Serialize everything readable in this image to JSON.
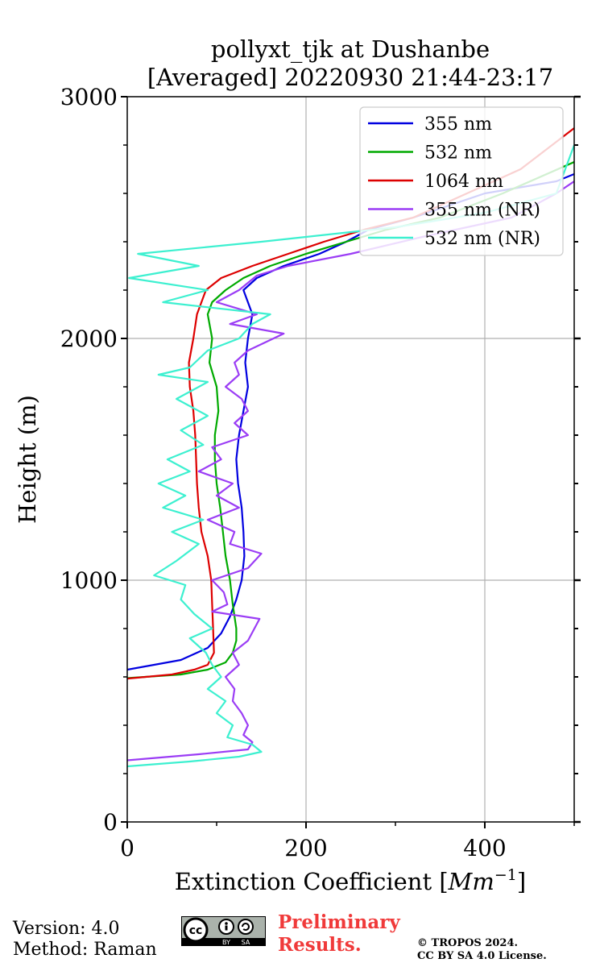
{
  "chart_data": {
    "type": "line",
    "title": "pollyxt_tjk at Dushanbe",
    "subtitle": "[Averaged] 20220930 21:44-23:17",
    "xlabel_text": "Extinction Coefficient [",
    "xlabel_unit": "Mm",
    "xlabel_exp": "−1",
    "xlabel_close": "]",
    "ylabel": "Height (m)",
    "xlim": [
      0,
      500
    ],
    "ylim": [
      0,
      3000
    ],
    "xticks": [
      0,
      200,
      400
    ],
    "xtick_labels": [
      "0",
      "200",
      "400"
    ],
    "yticks": [
      0,
      1000,
      2000,
      3000
    ],
    "ytick_labels": [
      "0",
      "1000",
      "2000",
      "3000"
    ],
    "grid": true,
    "legend_position": "top-right",
    "series": [
      {
        "name": "355 nm",
        "color": "#0000e0",
        "points": [
          [
            0,
            630
          ],
          [
            60,
            670
          ],
          [
            90,
            720
          ],
          [
            105,
            780
          ],
          [
            115,
            850
          ],
          [
            122,
            920
          ],
          [
            128,
            1000
          ],
          [
            131,
            1100
          ],
          [
            130,
            1200
          ],
          [
            128,
            1300
          ],
          [
            124,
            1400
          ],
          [
            122,
            1500
          ],
          [
            125,
            1600
          ],
          [
            130,
            1700
          ],
          [
            135,
            1800
          ],
          [
            132,
            1900
          ],
          [
            135,
            2000
          ],
          [
            140,
            2100
          ],
          [
            130,
            2200
          ],
          [
            145,
            2250
          ],
          [
            175,
            2300
          ],
          [
            215,
            2350
          ],
          [
            245,
            2400
          ],
          [
            270,
            2450
          ],
          [
            320,
            2500
          ],
          [
            400,
            2600
          ],
          [
            480,
            2650
          ],
          [
            500,
            2680
          ]
        ]
      },
      {
        "name": "532 nm",
        "color": "#00aa00",
        "points": [
          [
            0,
            595
          ],
          [
            60,
            610
          ],
          [
            90,
            630
          ],
          [
            110,
            660
          ],
          [
            118,
            700
          ],
          [
            122,
            750
          ],
          [
            122,
            800
          ],
          [
            118,
            900
          ],
          [
            115,
            1000
          ],
          [
            110,
            1100
          ],
          [
            107,
            1200
          ],
          [
            104,
            1300
          ],
          [
            100,
            1400
          ],
          [
            98,
            1500
          ],
          [
            98,
            1600
          ],
          [
            102,
            1700
          ],
          [
            100,
            1800
          ],
          [
            92,
            1900
          ],
          [
            95,
            2000
          ],
          [
            90,
            2100
          ],
          [
            95,
            2150
          ],
          [
            110,
            2200
          ],
          [
            130,
            2250
          ],
          [
            160,
            2300
          ],
          [
            200,
            2350
          ],
          [
            245,
            2400
          ],
          [
            290,
            2450
          ],
          [
            350,
            2500
          ],
          [
            420,
            2600
          ],
          [
            500,
            2730
          ]
        ]
      },
      {
        "name": "1064 nm",
        "color": "#dd0000",
        "points": [
          [
            0,
            593
          ],
          [
            50,
            610
          ],
          [
            75,
            630
          ],
          [
            90,
            650
          ],
          [
            97,
            700
          ],
          [
            96,
            800
          ],
          [
            95,
            900
          ],
          [
            94,
            1000
          ],
          [
            90,
            1100
          ],
          [
            83,
            1200
          ],
          [
            80,
            1300
          ],
          [
            78,
            1400
          ],
          [
            77,
            1500
          ],
          [
            76,
            1600
          ],
          [
            74,
            1700
          ],
          [
            70,
            1800
          ],
          [
            69,
            1900
          ],
          [
            74,
            2000
          ],
          [
            78,
            2100
          ],
          [
            88,
            2200
          ],
          [
            105,
            2250
          ],
          [
            140,
            2300
          ],
          [
            180,
            2350
          ],
          [
            220,
            2400
          ],
          [
            265,
            2450
          ],
          [
            320,
            2500
          ],
          [
            380,
            2600
          ],
          [
            440,
            2700
          ],
          [
            500,
            2870
          ]
        ]
      },
      {
        "name": "355 nm (NR)",
        "color": "#9b3df5",
        "points": [
          [
            0,
            255
          ],
          [
            80,
            280
          ],
          [
            135,
            300
          ],
          [
            140,
            330
          ],
          [
            130,
            360
          ],
          [
            135,
            400
          ],
          [
            128,
            450
          ],
          [
            118,
            500
          ],
          [
            120,
            550
          ],
          [
            110,
            600
          ],
          [
            125,
            650
          ],
          [
            118,
            700
          ],
          [
            135,
            750
          ],
          [
            148,
            840
          ],
          [
            95,
            870
          ],
          [
            112,
            900
          ],
          [
            108,
            950
          ],
          [
            95,
            1000
          ],
          [
            135,
            1050
          ],
          [
            150,
            1110
          ],
          [
            115,
            1150
          ],
          [
            120,
            1200
          ],
          [
            90,
            1250
          ],
          [
            125,
            1300
          ],
          [
            100,
            1350
          ],
          [
            118,
            1400
          ],
          [
            80,
            1450
          ],
          [
            105,
            1500
          ],
          [
            95,
            1550
          ],
          [
            135,
            1600
          ],
          [
            120,
            1650
          ],
          [
            135,
            1700
          ],
          [
            128,
            1750
          ],
          [
            110,
            1800
          ],
          [
            125,
            1850
          ],
          [
            120,
            1900
          ],
          [
            135,
            1950
          ],
          [
            175,
            2020
          ],
          [
            115,
            2060
          ],
          [
            145,
            2100
          ],
          [
            100,
            2150
          ],
          [
            125,
            2200
          ],
          [
            145,
            2260
          ],
          [
            180,
            2300
          ],
          [
            250,
            2350
          ],
          [
            330,
            2420
          ],
          [
            430,
            2500
          ],
          [
            480,
            2600
          ],
          [
            500,
            2650
          ]
        ]
      },
      {
        "name": "532 nm (NR)",
        "color": "#3df0d0",
        "points": [
          [
            0,
            230
          ],
          [
            70,
            250
          ],
          [
            125,
            270
          ],
          [
            150,
            290
          ],
          [
            140,
            320
          ],
          [
            112,
            350
          ],
          [
            118,
            400
          ],
          [
            100,
            450
          ],
          [
            110,
            500
          ],
          [
            90,
            550
          ],
          [
            105,
            600
          ],
          [
            95,
            650
          ],
          [
            88,
            700
          ],
          [
            70,
            760
          ],
          [
            95,
            800
          ],
          [
            75,
            860
          ],
          [
            60,
            920
          ],
          [
            65,
            980
          ],
          [
            30,
            1020
          ],
          [
            55,
            1080
          ],
          [
            80,
            1150
          ],
          [
            50,
            1200
          ],
          [
            85,
            1250
          ],
          [
            40,
            1300
          ],
          [
            65,
            1350
          ],
          [
            35,
            1400
          ],
          [
            70,
            1450
          ],
          [
            45,
            1500
          ],
          [
            85,
            1560
          ],
          [
            60,
            1620
          ],
          [
            90,
            1680
          ],
          [
            55,
            1750
          ],
          [
            90,
            1820
          ],
          [
            35,
            1850
          ],
          [
            70,
            1880
          ],
          [
            90,
            1950
          ],
          [
            125,
            2000
          ],
          [
            140,
            2060
          ],
          [
            160,
            2100
          ],
          [
            40,
            2150
          ],
          [
            90,
            2200
          ],
          [
            2,
            2250
          ],
          [
            80,
            2300
          ],
          [
            12,
            2350
          ],
          [
            150,
            2400
          ],
          [
            200,
            2420
          ],
          [
            300,
            2460
          ],
          [
            400,
            2520
          ],
          [
            480,
            2600
          ],
          [
            500,
            2800
          ]
        ]
      }
    ]
  },
  "footer": {
    "version": "Version: 4.0",
    "method": "Method: Raman",
    "preliminary_line1": "Preliminary",
    "preliminary_line2": "Results.",
    "copyright_line1": "© TROPOS 2024.",
    "copyright_line2": "CC BY SA 4.0 License.",
    "badge_by": "BY",
    "badge_sa": "SA",
    "badge_cc": "cc"
  }
}
